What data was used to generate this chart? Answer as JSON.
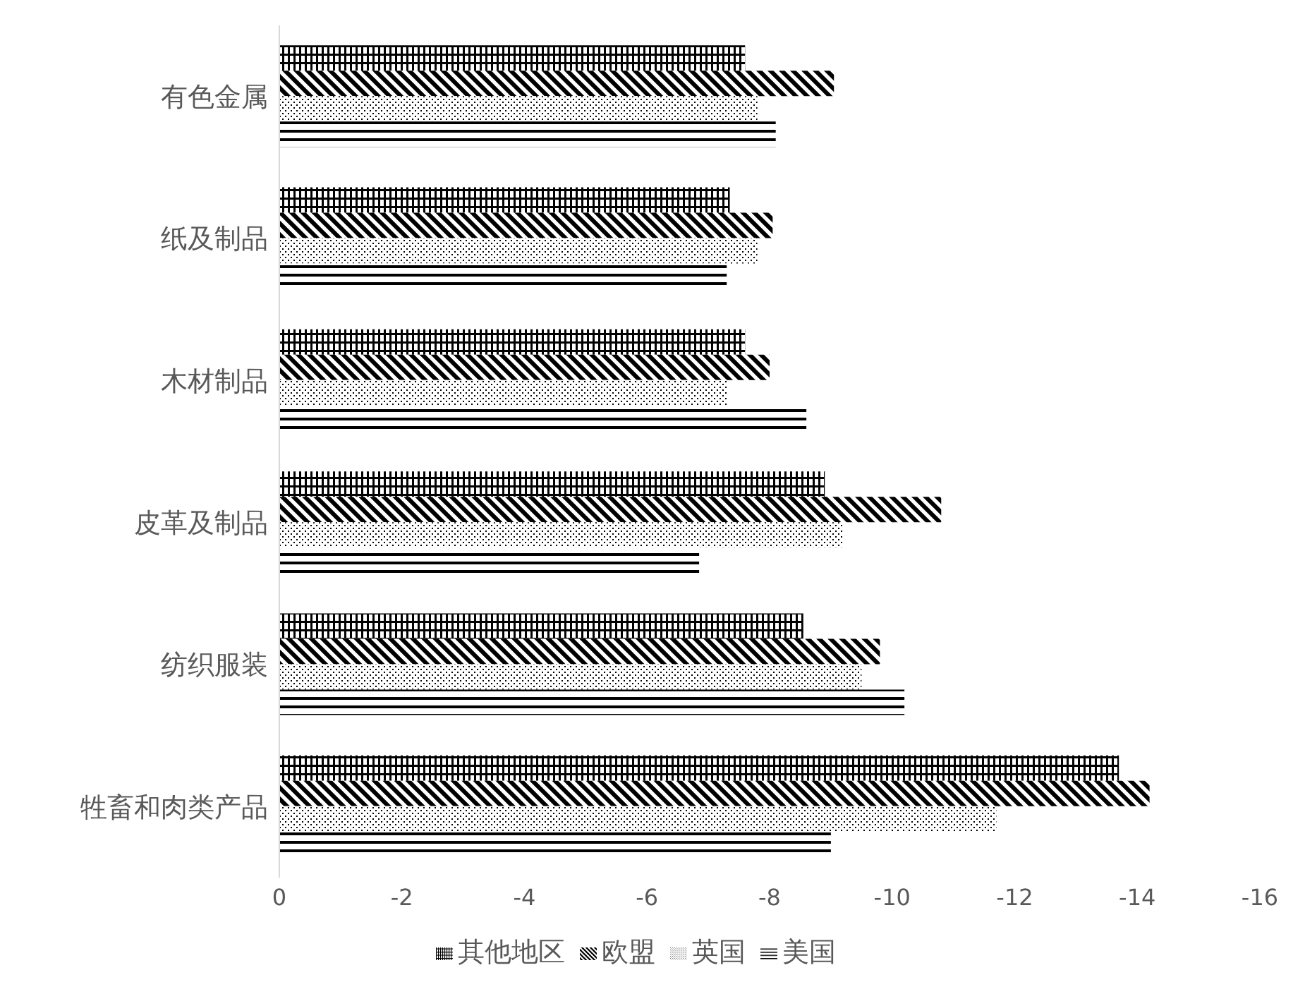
{
  "chart_data": {
    "type": "bar",
    "orientation": "horizontal",
    "categories": [
      "有色金属",
      "纸及制品",
      "木材制品",
      "皮革及制品",
      "纺织服装",
      "牲畜和肉类产品"
    ],
    "series": [
      {
        "name": "其他地区",
        "color": "#000000",
        "values": [
          -7.6,
          -7.35,
          -7.6,
          -8.9,
          -8.55,
          -13.7
        ]
      },
      {
        "name": "欧盟",
        "color": "#000000",
        "values": [
          -9.05,
          -8.05,
          -8.0,
          -10.8,
          -9.8,
          -14.2
        ]
      },
      {
        "name": "英国",
        "color": "#000000",
        "values": [
          -7.8,
          -7.8,
          -7.3,
          -9.2,
          -9.5,
          -11.7
        ]
      },
      {
        "name": "美国",
        "color": "#000000",
        "values": [
          -8.1,
          -7.3,
          -8.6,
          -6.85,
          -10.2,
          -9.0
        ]
      }
    ],
    "xlim": [
      0,
      -16
    ],
    "xticks": [
      0,
      -2,
      -4,
      -6,
      -8,
      -10,
      -12,
      -14,
      -16
    ],
    "legend": "bottom"
  }
}
